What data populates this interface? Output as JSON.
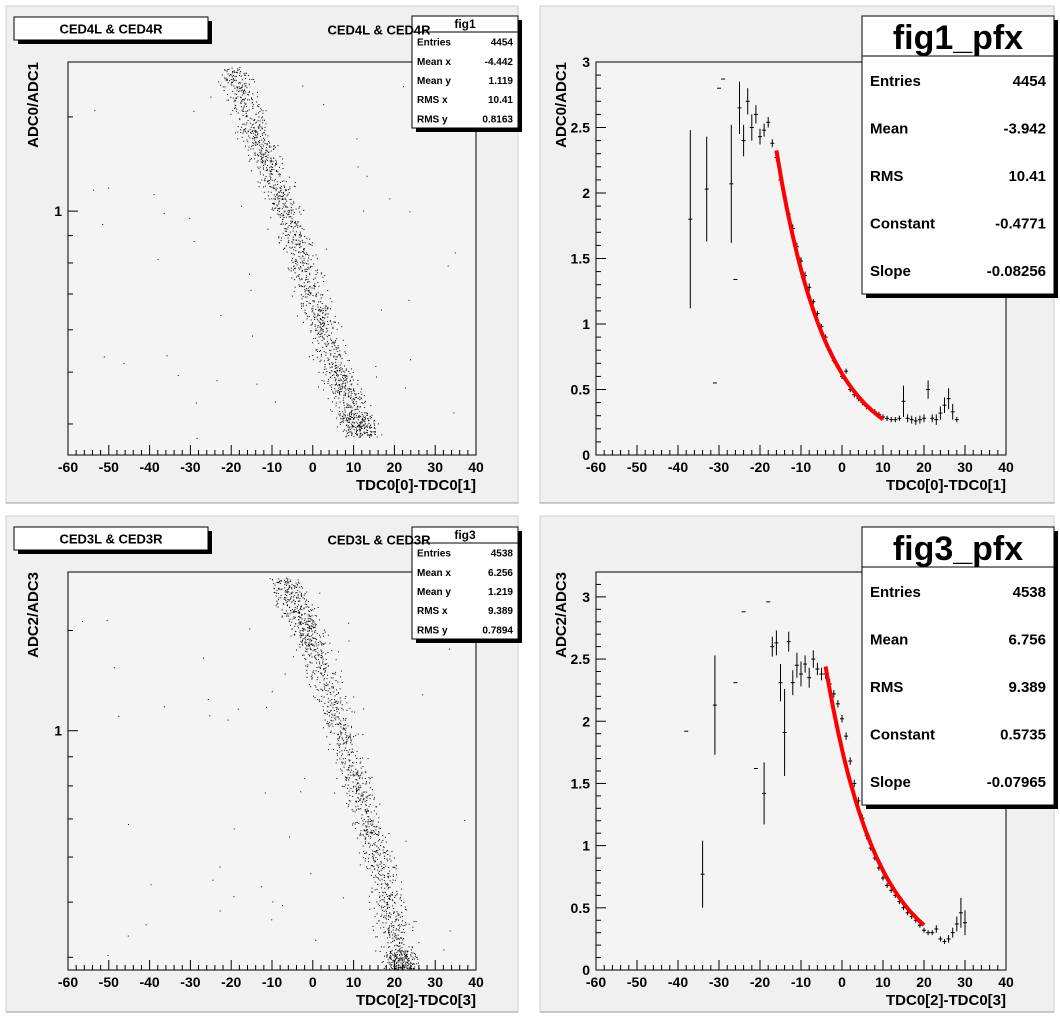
{
  "chart_data": [
    {
      "type": "scatter",
      "title": "CED4L & CED4R",
      "xlabel": "TDC0[0]-TDC0[1]",
      "ylabel": "ADC0/ADC1",
      "xlim": [
        -60,
        40
      ],
      "ylim": [
        0.35,
        1.9
      ],
      "log_y": true,
      "x_ticks": [
        -60,
        -50,
        -40,
        -30,
        -20,
        -10,
        0,
        10,
        20,
        30,
        40
      ],
      "y_ticks": [
        1
      ],
      "stats": {
        "name": "fig1",
        "rows": [
          [
            "Entries",
            "4454"
          ],
          [
            "Mean x",
            "-4.442"
          ],
          [
            "Mean y",
            "1.119"
          ],
          [
            "RMS x",
            "10.41"
          ],
          [
            "RMS y",
            "0.8163"
          ]
        ]
      },
      "band": {
        "points": [
          [
            -20,
            1.85
          ],
          [
            -15,
            1.45
          ],
          [
            -10,
            1.15
          ],
          [
            -5,
            0.9
          ],
          [
            0,
            0.68
          ],
          [
            5,
            0.52
          ],
          [
            10,
            0.42
          ],
          [
            12,
            0.38
          ]
        ],
        "spread_x": 2.5,
        "count": 1600
      },
      "stray": {
        "count": 60,
        "seed": 11
      }
    },
    {
      "type": "line",
      "title": "CED4L & CED4R",
      "xlabel": "TDC0[0]-TDC0[1]",
      "ylabel": "ADC0/ADC1",
      "xlim": [
        -60,
        40
      ],
      "ylim": [
        0,
        3
      ],
      "x_ticks": [
        -60,
        -50,
        -40,
        -30,
        -20,
        -10,
        0,
        10,
        20,
        30,
        40
      ],
      "y_ticks": [
        0,
        0.5,
        1,
        1.5,
        2,
        2.5,
        3
      ],
      "stats": {
        "name": "fig1_pfx",
        "rows": [
          [
            "Entries",
            "4454"
          ],
          [
            "Mean",
            "-3.942"
          ],
          [
            "RMS",
            "10.41"
          ],
          [
            "Constant",
            "-0.4771"
          ],
          [
            "Slope",
            "-0.08256"
          ]
        ]
      },
      "points": [
        [
          -37,
          1.8,
          0.68
        ],
        [
          -33,
          2.03,
          0.4
        ],
        [
          -31,
          0.55,
          0
        ],
        [
          -30,
          2.8,
          0
        ],
        [
          -29,
          2.87,
          0
        ],
        [
          -27,
          2.07,
          0.45
        ],
        [
          -26,
          1.34,
          0
        ],
        [
          -25,
          2.65,
          0.2
        ],
        [
          -24,
          2.4,
          0.12
        ],
        [
          -23,
          2.7,
          0.1
        ],
        [
          -22,
          2.5,
          0.1
        ],
        [
          -21,
          2.6,
          0.07
        ],
        [
          -20,
          2.43,
          0.06
        ],
        [
          -19,
          2.48,
          0.05
        ],
        [
          -18,
          2.54,
          0.04
        ],
        [
          -17,
          2.38,
          0.03
        ],
        [
          -16,
          2.27,
          0.03
        ],
        [
          -15,
          2.1,
          0.03
        ],
        [
          -14,
          1.97,
          0.03
        ],
        [
          -13,
          1.84,
          0.03
        ],
        [
          -12,
          1.73,
          0.03
        ],
        [
          -11,
          1.59,
          0.03
        ],
        [
          -10,
          1.48,
          0.03
        ],
        [
          -9,
          1.37,
          0.03
        ],
        [
          -8,
          1.28,
          0.03
        ],
        [
          -7,
          1.17,
          0.02
        ],
        [
          -6,
          1.08,
          0.02
        ],
        [
          -5,
          0.98,
          0.02
        ],
        [
          -4,
          0.9,
          0.02
        ],
        [
          -3,
          0.8,
          0.02
        ],
        [
          -2,
          0.72,
          0.02
        ],
        [
          -1,
          0.68,
          0.02
        ],
        [
          0,
          0.6,
          0.02
        ],
        [
          1,
          0.64,
          0.02
        ],
        [
          2,
          0.5,
          0.02
        ],
        [
          3,
          0.46,
          0.02
        ],
        [
          4,
          0.43,
          0.02
        ],
        [
          5,
          0.4,
          0.02
        ],
        [
          6,
          0.37,
          0.02
        ],
        [
          7,
          0.35,
          0.02
        ],
        [
          8,
          0.33,
          0.02
        ],
        [
          9,
          0.31,
          0.02
        ],
        [
          10,
          0.29,
          0.02
        ],
        [
          11,
          0.28,
          0.02
        ],
        [
          12,
          0.27,
          0.02
        ],
        [
          13,
          0.27,
          0.02
        ],
        [
          14,
          0.28,
          0.02
        ],
        [
          15,
          0.41,
          0.12
        ],
        [
          16,
          0.28,
          0.03
        ],
        [
          17,
          0.27,
          0.03
        ],
        [
          18,
          0.26,
          0.03
        ],
        [
          19,
          0.27,
          0.03
        ],
        [
          20,
          0.28,
          0.03
        ],
        [
          21,
          0.5,
          0.07
        ],
        [
          22,
          0.28,
          0.03
        ],
        [
          23,
          0.27,
          0.04
        ],
        [
          24,
          0.32,
          0.05
        ],
        [
          25,
          0.38,
          0.06
        ],
        [
          26,
          0.43,
          0.08
        ],
        [
          27,
          0.33,
          0.06
        ],
        [
          28,
          0.27,
          0.02
        ]
      ],
      "fit": {
        "constant": -0.4771,
        "slope": -0.08256,
        "x_range": [
          -16,
          10
        ],
        "color": "#ff0000"
      }
    },
    {
      "type": "scatter",
      "title": "CED3L & CED3R",
      "xlabel": "TDC0[2]-TDC0[3]",
      "ylabel": "ADC2/ADC3",
      "xlim": [
        -60,
        40
      ],
      "ylim": [
        0.38,
        1.9
      ],
      "log_y": true,
      "x_ticks": [
        -60,
        -50,
        -40,
        -30,
        -20,
        -10,
        0,
        10,
        20,
        30,
        40
      ],
      "y_ticks": [
        1
      ],
      "stats": {
        "name": "fig3",
        "rows": [
          [
            "Entries",
            "4538"
          ],
          [
            "Mean x",
            "6.256"
          ],
          [
            "Mean y",
            "1.219"
          ],
          [
            "RMS x",
            "9.389"
          ],
          [
            "RMS y",
            "0.7894"
          ]
        ]
      },
      "band": {
        "points": [
          [
            -8,
            1.85
          ],
          [
            -3,
            1.6
          ],
          [
            0,
            1.4
          ],
          [
            5,
            1.1
          ],
          [
            10,
            0.85
          ],
          [
            14,
            0.67
          ],
          [
            18,
            0.52
          ],
          [
            21,
            0.41
          ],
          [
            22,
            0.38
          ]
        ],
        "spread_x": 2.5,
        "count": 1600
      },
      "stray": {
        "count": 55,
        "seed": 23
      }
    },
    {
      "type": "line",
      "title": "CED3L & CED3R",
      "xlabel": "TDC0[2]-TDC0[3]",
      "ylabel": "ADC2/ADC3",
      "xlim": [
        -60,
        40
      ],
      "ylim": [
        0,
        3.2
      ],
      "x_ticks": [
        -60,
        -50,
        -40,
        -30,
        -20,
        -10,
        0,
        10,
        20,
        30,
        40
      ],
      "y_ticks": [
        0,
        0.5,
        1,
        1.5,
        2,
        2.5,
        3
      ],
      "stats": {
        "name": "fig3_pfx",
        "rows": [
          [
            "Entries",
            "4538"
          ],
          [
            "Mean",
            "6.756"
          ],
          [
            "RMS",
            "9.389"
          ],
          [
            "Constant",
            "0.5735"
          ],
          [
            "Slope",
            "-0.07965"
          ]
        ]
      },
      "points": [
        [
          -38,
          1.92,
          0
        ],
        [
          -34,
          0.77,
          0.27
        ],
        [
          -31,
          2.13,
          0.4
        ],
        [
          -26,
          2.31,
          0
        ],
        [
          -24,
          2.88,
          0
        ],
        [
          -21,
          1.62,
          0
        ],
        [
          -19,
          1.42,
          0.25
        ],
        [
          -18,
          2.96,
          0
        ],
        [
          -17,
          2.6,
          0.08
        ],
        [
          -16,
          2.63,
          0.1
        ],
        [
          -15,
          2.31,
          0.15
        ],
        [
          -14,
          1.91,
          0.35
        ],
        [
          -13,
          2.64,
          0.08
        ],
        [
          -12,
          2.31,
          0.1
        ],
        [
          -11,
          2.45,
          0.1
        ],
        [
          -10,
          2.38,
          0.1
        ],
        [
          -9,
          2.46,
          0.07
        ],
        [
          -8,
          2.35,
          0.08
        ],
        [
          -7,
          2.5,
          0.07
        ],
        [
          -6,
          2.42,
          0.05
        ],
        [
          -5,
          2.38,
          0.05
        ],
        [
          -4,
          2.38,
          0.04
        ],
        [
          -3,
          2.3,
          0.04
        ],
        [
          -2,
          2.22,
          0.03
        ],
        [
          -1,
          2.14,
          0.03
        ],
        [
          0,
          2.02,
          0.03
        ],
        [
          1,
          1.88,
          0.03
        ],
        [
          2,
          1.68,
          0.03
        ],
        [
          3,
          1.5,
          0.03
        ],
        [
          4,
          1.36,
          0.03
        ],
        [
          5,
          1.22,
          0.03
        ],
        [
          6,
          1.08,
          0.03
        ],
        [
          7,
          0.98,
          0.02
        ],
        [
          8,
          0.9,
          0.02
        ],
        [
          9,
          0.82,
          0.02
        ],
        [
          10,
          0.74,
          0.02
        ],
        [
          11,
          0.68,
          0.02
        ],
        [
          12,
          0.64,
          0.02
        ],
        [
          13,
          0.6,
          0.02
        ],
        [
          14,
          0.55,
          0.02
        ],
        [
          15,
          0.5,
          0.02
        ],
        [
          16,
          0.46,
          0.02
        ],
        [
          17,
          0.43,
          0.02
        ],
        [
          18,
          0.4,
          0.02
        ],
        [
          19,
          0.36,
          0.02
        ],
        [
          20,
          0.32,
          0.02
        ],
        [
          21,
          0.3,
          0.02
        ],
        [
          22,
          0.3,
          0.02
        ],
        [
          23,
          0.33,
          0.03
        ],
        [
          24,
          0.25,
          0.02
        ],
        [
          25,
          0.23,
          0.02
        ],
        [
          26,
          0.25,
          0.03
        ],
        [
          27,
          0.3,
          0.04
        ],
        [
          28,
          0.37,
          0.06
        ],
        [
          29,
          0.46,
          0.12
        ],
        [
          30,
          0.38,
          0.1
        ]
      ],
      "fit": {
        "constant": 0.5735,
        "slope": -0.07965,
        "x_range": [
          -4,
          20
        ],
        "color": "#ff0000"
      }
    }
  ]
}
